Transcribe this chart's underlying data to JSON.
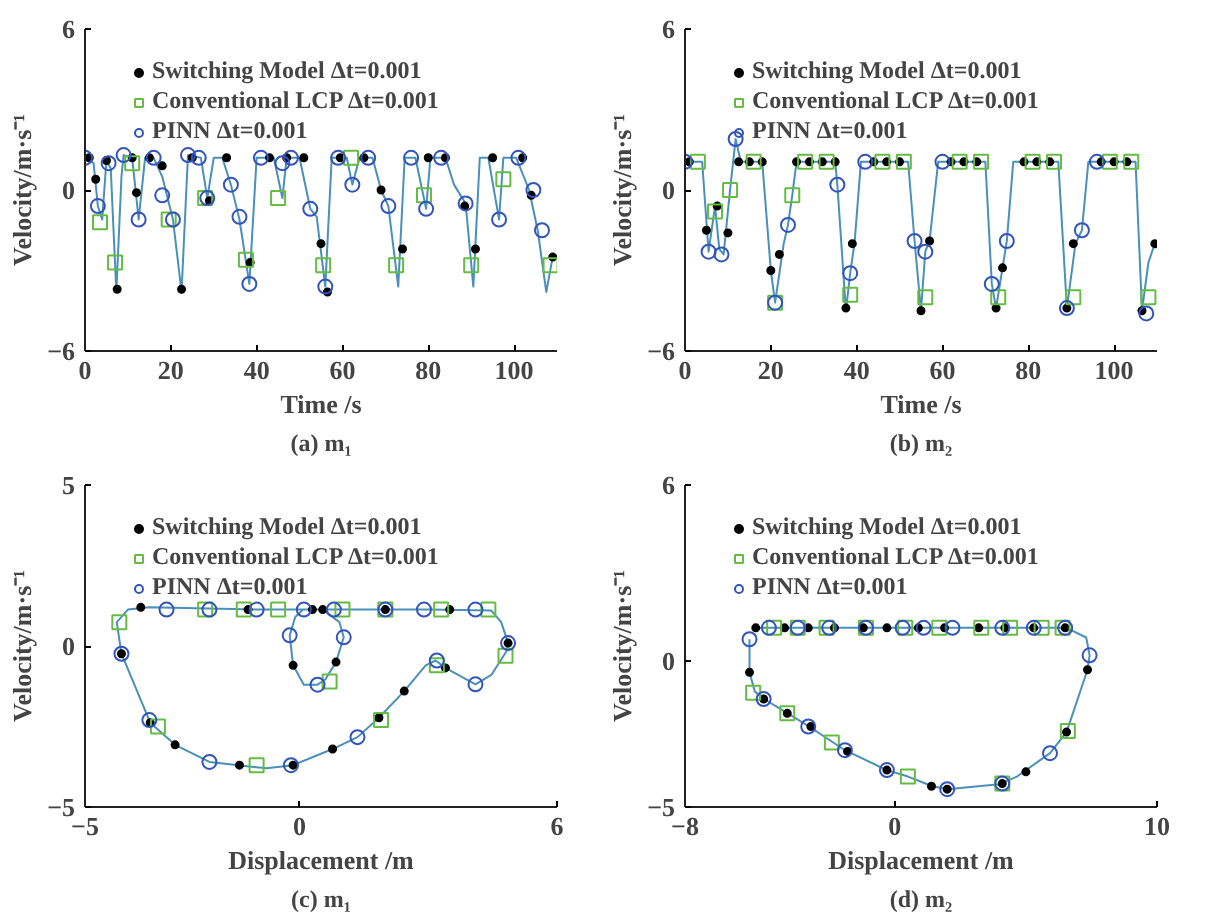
{
  "chart_data": [
    {
      "type": "scatter",
      "title": "(a) m₁",
      "xlabel": "Time /s",
      "ylabel": "Velocity/m·s⁻¹",
      "xlim": [
        0,
        110
      ],
      "xticks": [
        0,
        20,
        40,
        60,
        80,
        100
      ],
      "ylim": [
        -6,
        6
      ],
      "yticks": [
        -6,
        0,
        6
      ],
      "grid": false,
      "legend": "top",
      "series": [
        {
          "type": "line",
          "color": "#4a90b8",
          "x": [
            0,
            2,
            3,
            4,
            5,
            6,
            7.3,
            8.5,
            9,
            11,
            12.5,
            14,
            16,
            18,
            20.5,
            22.5,
            24,
            27,
            28.5,
            30,
            32,
            34,
            36,
            38.3,
            40,
            44,
            46,
            47,
            50,
            52.5,
            54,
            56,
            57.5,
            61,
            62.3,
            64,
            67,
            69,
            70.7,
            73,
            74.5,
            77,
            79.5,
            80.5,
            84,
            86,
            88.7,
            90.5,
            92,
            94,
            96.5,
            97.5,
            100.5,
            103.5,
            105.5,
            107.5,
            109
          ],
          "values": [
            1.2,
            1.0,
            -0.6,
            -1.1,
            1.1,
            0.8,
            -3.8,
            0.5,
            1.3,
            1.2,
            -1.1,
            1.2,
            1.2,
            0.5,
            -1.1,
            -3.8,
            1.3,
            1.2,
            -0.3,
            1.2,
            1.2,
            0.2,
            -1.1,
            -3.5,
            1.2,
            1.2,
            -0.3,
            1.2,
            1.2,
            -0.7,
            -1.0,
            -3.6,
            1.2,
            1.2,
            0.2,
            1.2,
            1.2,
            0.0,
            -0.6,
            -3.6,
            1.2,
            1.2,
            -0.7,
            1.2,
            1.2,
            0.2,
            -0.5,
            -3.6,
            1.2,
            1.2,
            -1.1,
            1.2,
            1.2,
            0.0,
            -1.5,
            -3.8,
            -2.5
          ]
        },
        {
          "type": "scatter",
          "name": "Switching Model Δt=0.001",
          "color": "#000000",
          "marker": "circle",
          "x": [
            1,
            2.5,
            5,
            7.5,
            11,
            12,
            15,
            18,
            22.5,
            25,
            29,
            33,
            38.5,
            43,
            47,
            51,
            55,
            56.5,
            59.5,
            65,
            69,
            74,
            80,
            84,
            88.5,
            91,
            95,
            102,
            104,
            109
          ],
          "values": [
            1.2,
            0.4,
            1.1,
            -3.7,
            1.2,
            -0.1,
            1.2,
            0.9,
            -3.7,
            1.2,
            -0.4,
            1.2,
            -2.7,
            1.2,
            1.2,
            1.2,
            -2.0,
            -3.8,
            1.2,
            1.2,
            0.0,
            -2.2,
            1.2,
            1.2,
            -0.6,
            -2.2,
            1.2,
            1.2,
            -0.2,
            -2.5
          ]
        },
        {
          "type": "scatter",
          "name": "Conventional LCP Δt=0.001",
          "color": "#66bb44",
          "marker": "square",
          "x": [
            3.5,
            7,
            11,
            19.5,
            28,
            37.5,
            45,
            55.5,
            62,
            72.5,
            79,
            90,
            97.5,
            108.5
          ],
          "values": [
            -1.2,
            -2.7,
            1.0,
            -1.1,
            -0.3,
            -2.6,
            -0.3,
            -2.8,
            1.2,
            -2.8,
            -0.2,
            -2.8,
            0.4,
            -2.8
          ]
        },
        {
          "type": "scatter",
          "name": "PINN Δt=0.001",
          "color": "#3355bb",
          "marker": "circle",
          "x": [
            0,
            3,
            5.5,
            9,
            12.5,
            16,
            18,
            20.5,
            24,
            26.5,
            28.5,
            34,
            36,
            38.3,
            41,
            46,
            48,
            52.5,
            56,
            59,
            62.3,
            66,
            70.7,
            76,
            79.5,
            83,
            88.7,
            96.5,
            101,
            104.5,
            106.5
          ],
          "values": [
            1.2,
            -0.6,
            1.0,
            1.3,
            -1.1,
            1.2,
            -0.2,
            -1.1,
            1.3,
            1.2,
            -0.3,
            0.2,
            -1.0,
            -3.5,
            1.2,
            1.0,
            1.2,
            -0.7,
            -3.6,
            1.2,
            0.2,
            1.2,
            -0.6,
            1.2,
            -0.7,
            1.2,
            -0.5,
            -1.1,
            1.2,
            0.0,
            -1.5
          ]
        }
      ]
    },
    {
      "type": "scatter",
      "title": "(b) m₂",
      "xlabel": "Time /s",
      "ylabel": "Velocity/m·s⁻¹",
      "xlim": [
        0,
        110
      ],
      "xticks": [
        0,
        20,
        40,
        60,
        80,
        100
      ],
      "ylim": [
        -6,
        6
      ],
      "yticks": [
        -6,
        0,
        6
      ],
      "grid": false,
      "legend": "top",
      "series": [
        {
          "type": "line",
          "color": "#4a90b8",
          "x": [
            0,
            4,
            5.5,
            7,
            8,
            9,
            10.5,
            11.8,
            13,
            18,
            20,
            21,
            23,
            24,
            25,
            26,
            35,
            35.5,
            37.5,
            38.5,
            39.5,
            41,
            52,
            53.5,
            55,
            56,
            57,
            59,
            70,
            71.5,
            72.5,
            74,
            75,
            76.5,
            87,
            89,
            91,
            92.5,
            94,
            105,
            106.5,
            108,
            109.5
          ],
          "values": [
            1.05,
            1.05,
            -2.3,
            -0.6,
            -2.2,
            -2.4,
            0.0,
            1.9,
            1.05,
            1.05,
            -3.0,
            -4.2,
            -2.0,
            -1.3,
            -0.2,
            1.05,
            1.05,
            0.2,
            -4.5,
            -3.1,
            -2.0,
            1.05,
            1.05,
            -1.9,
            -4.5,
            -2.3,
            -1.9,
            1.05,
            1.05,
            -3.5,
            -4.4,
            -2.9,
            -1.9,
            1.05,
            1.05,
            -4.4,
            -2.0,
            -1.5,
            1.05,
            1.05,
            -4.5,
            -2.7,
            -2.0
          ]
        },
        {
          "type": "scatter",
          "name": "Switching Model Δt=0.001",
          "color": "#000000",
          "marker": "circle",
          "x": [
            1,
            5,
            7.5,
            10,
            12.5,
            15,
            18,
            20,
            22,
            26,
            29,
            32,
            35,
            37.5,
            39,
            44,
            47,
            50,
            55,
            57,
            62,
            65,
            68,
            72.5,
            74,
            79,
            82,
            85,
            89,
            90.5,
            97,
            100,
            103,
            106.5,
            109.5
          ],
          "values": [
            1.05,
            -1.5,
            -0.6,
            -1.6,
            1.05,
            1.05,
            1.05,
            -3.0,
            -2.4,
            1.05,
            1.05,
            1.05,
            1.05,
            -4.4,
            -2.0,
            1.05,
            1.05,
            1.05,
            -4.5,
            -1.9,
            1.05,
            1.05,
            1.05,
            -4.4,
            -2.9,
            1.05,
            1.05,
            1.05,
            -4.4,
            -2.0,
            1.05,
            1.05,
            1.05,
            -4.5,
            -2.0
          ]
        },
        {
          "type": "scatter",
          "name": "Conventional LCP Δt=0.001",
          "color": "#66bb44",
          "marker": "square",
          "x": [
            3,
            7,
            10.5,
            16,
            21,
            25,
            28,
            33,
            38.5,
            46,
            51,
            56,
            64,
            69,
            73,
            81,
            86,
            90.5,
            99,
            104,
            108
          ],
          "values": [
            1.05,
            -0.8,
            0.0,
            1.05,
            -4.2,
            -0.2,
            1.05,
            1.05,
            -3.9,
            1.05,
            1.05,
            -4.0,
            1.05,
            1.05,
            -4.0,
            1.05,
            1.05,
            -4.0,
            1.05,
            1.05,
            -4.0
          ]
        },
        {
          "type": "scatter",
          "name": "PINN Δt=0.001",
          "color": "#3355bb",
          "marker": "circle",
          "x": [
            0,
            5.5,
            8.5,
            11.8,
            21,
            24,
            35.5,
            38.5,
            42,
            53.5,
            56,
            60,
            71.5,
            75,
            89,
            92.5,
            96,
            107.5
          ],
          "values": [
            1.05,
            -2.3,
            -2.4,
            1.9,
            -4.2,
            -1.3,
            0.2,
            -3.1,
            1.05,
            -1.9,
            -2.3,
            1.05,
            -3.5,
            -1.9,
            -4.4,
            -1.5,
            1.05,
            -4.6
          ]
        }
      ]
    },
    {
      "type": "scatter",
      "title": "(c) m₁",
      "xlabel": "Displacement /m",
      "ylabel": "Velocity/m·s⁻¹",
      "xlim": [
        -5,
        6
      ],
      "xticks": [
        -5,
        0,
        6
      ],
      "ylim": [
        -5,
        5
      ],
      "yticks": [
        -5,
        0,
        5
      ],
      "grid": false,
      "legend": "top",
      "series": [
        {
          "type": "line",
          "color": "#4a90b8",
          "x": [
            0.54,
            0.93,
            1.03,
            0.85,
            0.6,
            0.42,
            0.1,
            -0.15,
            -0.23,
            -0.1,
            0.08,
            1.0,
            2.0,
            3.0,
            4.47,
            4.7,
            4.86,
            4.83,
            4.47,
            4.1,
            3.4,
            3.17,
            2.94,
            2.44,
            1.85,
            1.35,
            0.77,
            -0.15,
            -0.77,
            -2.1,
            -2.9,
            -3.48,
            -4.15,
            -4.26,
            -4.0,
            -3.5,
            -1.0,
            0.5
          ],
          "values": [
            1.13,
            0.74,
            0.27,
            -0.5,
            -1.04,
            -1.2,
            -1.2,
            -0.6,
            0.33,
            0.9,
            1.13,
            1.13,
            1.13,
            1.13,
            1.1,
            0.74,
            0.09,
            -0.15,
            -0.9,
            -1.19,
            -0.68,
            -0.45,
            -0.6,
            -1.4,
            -2.23,
            -2.83,
            -3.2,
            -3.7,
            -3.8,
            -3.6,
            -3.07,
            -2.38,
            -0.24,
            0.74,
            1.13,
            1.2,
            1.13,
            1.13
          ]
        },
        {
          "type": "scatter",
          "name": "Switching Model Δt=0.001",
          "color": "#000000",
          "marker": "circle",
          "x": [
            -3.7,
            -1.2,
            0.3,
            2.0,
            3.5,
            4.86,
            3.4,
            2.44,
            1.85,
            0.77,
            -0.15,
            -1.4,
            -2.9,
            -3.48,
            -4.15,
            -0.15,
            0.85,
            0.54
          ],
          "values": [
            1.2,
            1.13,
            1.13,
            1.13,
            1.13,
            0.09,
            -0.68,
            -1.4,
            -2.23,
            -3.2,
            -3.7,
            -3.7,
            -3.07,
            -2.38,
            -0.24,
            -0.6,
            -0.5,
            1.13
          ]
        },
        {
          "type": "scatter",
          "name": "Conventional LCP Δt=0.001",
          "color": "#66bb44",
          "marker": "square",
          "x": [
            -4.2,
            -2.2,
            -1.3,
            -0.5,
            1.0,
            2.0,
            3.3,
            4.4,
            4.8,
            3.2,
            1.9,
            -1.0,
            -3.3,
            0.7
          ],
          "values": [
            0.74,
            1.13,
            1.13,
            1.13,
            1.13,
            1.13,
            1.13,
            1.13,
            -0.3,
            -0.6,
            -2.3,
            -3.7,
            -2.5,
            -1.1
          ]
        },
        {
          "type": "scatter",
          "name": "PINN Δt=0.001",
          "color": "#3355bb",
          "marker": "circle",
          "x": [
            -4.15,
            -3.1,
            -2.1,
            -1.0,
            0.1,
            0.8,
            2.0,
            2.9,
            4.1,
            4.86,
            4.1,
            3.2,
            1.35,
            -0.2,
            -2.1,
            -3.5,
            -0.23,
            0.42,
            1.03
          ],
          "values": [
            -0.24,
            1.13,
            1.13,
            1.13,
            1.13,
            1.13,
            1.13,
            1.13,
            1.13,
            0.09,
            -1.19,
            -0.45,
            -2.83,
            -3.7,
            -3.6,
            -2.3,
            0.33,
            -1.2,
            0.27
          ]
        }
      ]
    },
    {
      "type": "scatter",
      "title": "(d) m₂",
      "xlabel": "Displacement /m",
      "ylabel": "Velocity/m·s⁻¹",
      "xlim": [
        -8,
        10
      ],
      "xticks": [
        -8,
        0,
        10
      ],
      "ylim": [
        -5,
        6
      ],
      "yticks": [
        -5,
        0,
        6
      ],
      "grid": false,
      "legend": "top",
      "series": [
        {
          "type": "line",
          "color": "#4a90b8",
          "x": [
            -5.39,
            -3.0,
            0.0,
            3.0,
            6.55,
            7.3,
            7.43,
            7.35,
            6.55,
            5.92,
            4.66,
            3.98,
            2.0,
            1.44,
            0.5,
            -0.3,
            -1.9,
            -2.39,
            -3.27,
            -4.08,
            -4.99,
            -5.34,
            -5.54,
            -5.54
          ],
          "values": [
            1.12,
            1.12,
            1.12,
            1.12,
            1.12,
            0.79,
            0.18,
            -0.31,
            -2.44,
            -3.16,
            -3.96,
            -4.22,
            -4.39,
            -4.29,
            -3.96,
            -3.74,
            -3.06,
            -2.77,
            -2.25,
            -1.8,
            -1.31,
            -1.05,
            -0.4,
            0.73
          ]
        },
        {
          "type": "scatter",
          "name": "Switching Model Δt=0.001",
          "color": "#000000",
          "marker": "circle",
          "x": [
            -5.3,
            -4.2,
            -3.3,
            -2.3,
            -1.2,
            -0.3,
            0.9,
            1.9,
            3.2,
            4.2,
            5.3,
            6.5,
            7.35,
            6.55,
            5.0,
            4.1,
            2.0,
            1.4,
            -0.3,
            -1.8,
            -3.2,
            -4.1,
            -5.0,
            -5.54
          ],
          "values": [
            1.12,
            1.12,
            1.12,
            1.12,
            1.12,
            1.12,
            1.12,
            1.12,
            1.12,
            1.12,
            1.12,
            1.12,
            -0.31,
            -2.44,
            -3.8,
            -4.2,
            -4.39,
            -4.29,
            -3.74,
            -3.1,
            -2.25,
            -1.8,
            -1.31,
            -0.4
          ]
        },
        {
          "type": "scatter",
          "name": "Conventional LCP Δt=0.001",
          "color": "#66bb44",
          "marker": "square",
          "x": [
            -4.6,
            -3.7,
            -2.6,
            -1.1,
            0.4,
            1.7,
            3.3,
            4.4,
            5.6,
            6.4,
            6.6,
            4.1,
            0.5,
            -2.4,
            -4.1,
            -5.4
          ],
          "values": [
            1.12,
            1.12,
            1.12,
            1.12,
            1.12,
            1.12,
            1.12,
            1.12,
            1.12,
            1.12,
            -2.4,
            -4.2,
            -3.96,
            -2.8,
            -1.8,
            -1.1
          ]
        },
        {
          "type": "scatter",
          "name": "PINN Δt=0.001",
          "color": "#3355bb",
          "marker": "circle",
          "x": [
            -4.8,
            -3.7,
            -2.5,
            -1.1,
            0.3,
            1.1,
            2.2,
            4.1,
            5.3,
            6.5,
            -5.54,
            7.43,
            5.92,
            4.1,
            2.0,
            -0.3,
            -1.9,
            -3.3,
            -5.0
          ],
          "values": [
            1.12,
            1.12,
            1.12,
            1.12,
            1.12,
            1.12,
            1.12,
            1.12,
            1.12,
            1.12,
            0.73,
            0.18,
            -3.16,
            -4.2,
            -4.39,
            -3.74,
            -3.06,
            -2.25,
            -1.31
          ]
        }
      ]
    }
  ]
}
